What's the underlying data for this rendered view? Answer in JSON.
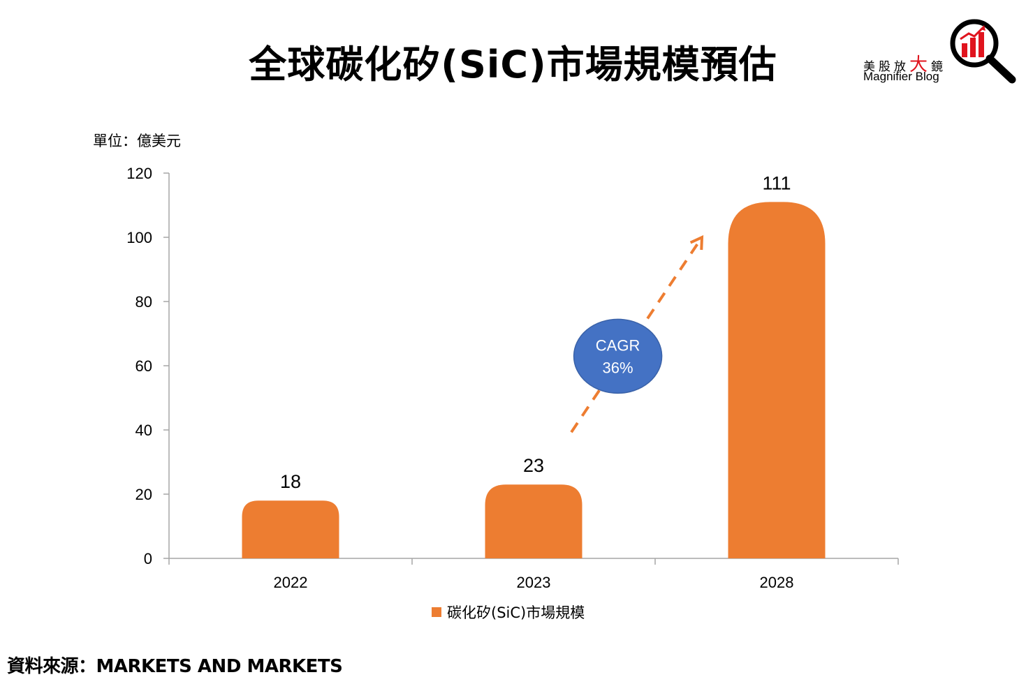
{
  "title": "全球碳化矽(SiC)市場規模預估",
  "logo": {
    "zh_parts": [
      "美股放",
      "大",
      "鏡"
    ],
    "en": "Magnifier Blog",
    "icon": "magnifier-bar-chart-icon",
    "accent_color": "#E0141E"
  },
  "unit_label": "單位：億美元",
  "source": "資料來源：MARKETS AND MARKETS",
  "chart_data": {
    "type": "bar",
    "title": "全球碳化矽(SiC)市場規模預估",
    "categories": [
      "2022",
      "2023",
      "2028"
    ],
    "series": [
      {
        "name": "碳化矽(SiC)市場規模",
        "values": [
          18,
          23,
          111
        ],
        "color": "#ED7D31"
      }
    ],
    "ylim": [
      0,
      120
    ],
    "yticks": [
      0,
      20,
      40,
      60,
      80,
      100,
      120
    ],
    "grid": false,
    "legend_position": "bottom",
    "data_labels": true,
    "annotation": {
      "label_lines": [
        "CAGR",
        "36%"
      ],
      "bubble_color": "#4472C4",
      "arrow_color": "#ED7D31",
      "arrow_style": "dashed"
    }
  }
}
